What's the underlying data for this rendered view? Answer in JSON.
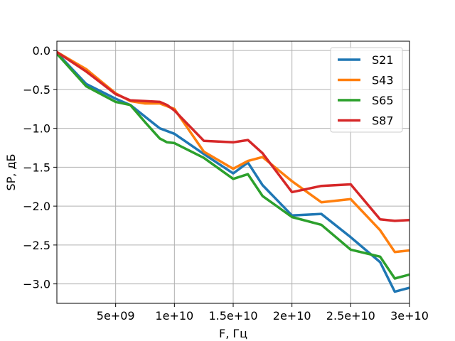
{
  "chart_data": {
    "type": "line",
    "xlabel": "F, Гц",
    "ylabel": "SP, дБ",
    "xlim": [
      0,
      30000000000
    ],
    "ylim": [
      -3.25,
      0.12
    ],
    "grid": true,
    "legend_position": "top-right",
    "x_ticks": [
      5000000000,
      10000000000,
      15000000000,
      20000000000,
      25000000000,
      30000000000
    ],
    "x_tick_labels": [
      "5e+09",
      "1e+10",
      "1.5e+10",
      "2e+10",
      "2.5e+10",
      "3e+10"
    ],
    "y_ticks": [
      0.0,
      -0.5,
      -1.0,
      -1.5,
      -2.0,
      -2.5,
      -3.0
    ],
    "y_tick_labels": [
      "0.0",
      "−0.5",
      "−1.0",
      "−1.5",
      "−2.0",
      "−2.5",
      "−3.0"
    ],
    "series": [
      {
        "name": "S21",
        "color": "#1f77b4",
        "x": [
          0,
          2500000000,
          5000000000,
          6250000000,
          8750000000,
          10000000000,
          12500000000,
          15000000000,
          16250000000,
          17500000000,
          20000000000,
          22500000000,
          25000000000,
          27500000000,
          28750000000,
          30000000000
        ],
        "y": [
          -0.03,
          -0.43,
          -0.62,
          -0.7,
          -1.0,
          -1.07,
          -1.33,
          -1.58,
          -1.44,
          -1.73,
          -2.12,
          -2.1,
          -2.4,
          -2.72,
          -3.1,
          -3.05
        ]
      },
      {
        "name": "S43",
        "color": "#ff7f0e",
        "x": [
          0,
          2500000000,
          5000000000,
          6250000000,
          7500000000,
          8750000000,
          10000000000,
          12500000000,
          15000000000,
          16250000000,
          17500000000,
          20000000000,
          22500000000,
          25000000000,
          27500000000,
          28750000000,
          30000000000
        ],
        "y": [
          -0.02,
          -0.24,
          -0.55,
          -0.65,
          -0.68,
          -0.68,
          -0.75,
          -1.3,
          -1.52,
          -1.42,
          -1.37,
          -1.68,
          -1.95,
          -1.91,
          -2.31,
          -2.59,
          -2.57
        ]
      },
      {
        "name": "S65",
        "color": "#2ca02c",
        "x": [
          0,
          2500000000,
          5000000000,
          6250000000,
          7500000000,
          8750000000,
          9375000000,
          10000000000,
          12500000000,
          15000000000,
          16250000000,
          17500000000,
          20000000000,
          22500000000,
          25000000000,
          27500000000,
          28750000000,
          30000000000
        ],
        "y": [
          -0.04,
          -0.46,
          -0.66,
          -0.7,
          -0.92,
          -1.13,
          -1.18,
          -1.19,
          -1.38,
          -1.65,
          -1.59,
          -1.87,
          -2.14,
          -2.24,
          -2.56,
          -2.65,
          -2.93,
          -2.88
        ]
      },
      {
        "name": "S87",
        "color": "#d62728",
        "x": [
          0,
          2500000000,
          5000000000,
          6250000000,
          7500000000,
          8750000000,
          9375000000,
          10000000000,
          12500000000,
          15000000000,
          16250000000,
          17500000000,
          20000000000,
          22500000000,
          25000000000,
          27500000000,
          28750000000,
          30000000000
        ],
        "y": [
          -0.02,
          -0.27,
          -0.56,
          -0.64,
          -0.65,
          -0.66,
          -0.7,
          -0.77,
          -1.16,
          -1.18,
          -1.15,
          -1.32,
          -1.82,
          -1.74,
          -1.72,
          -2.17,
          -2.19,
          -2.18
        ]
      }
    ]
  }
}
